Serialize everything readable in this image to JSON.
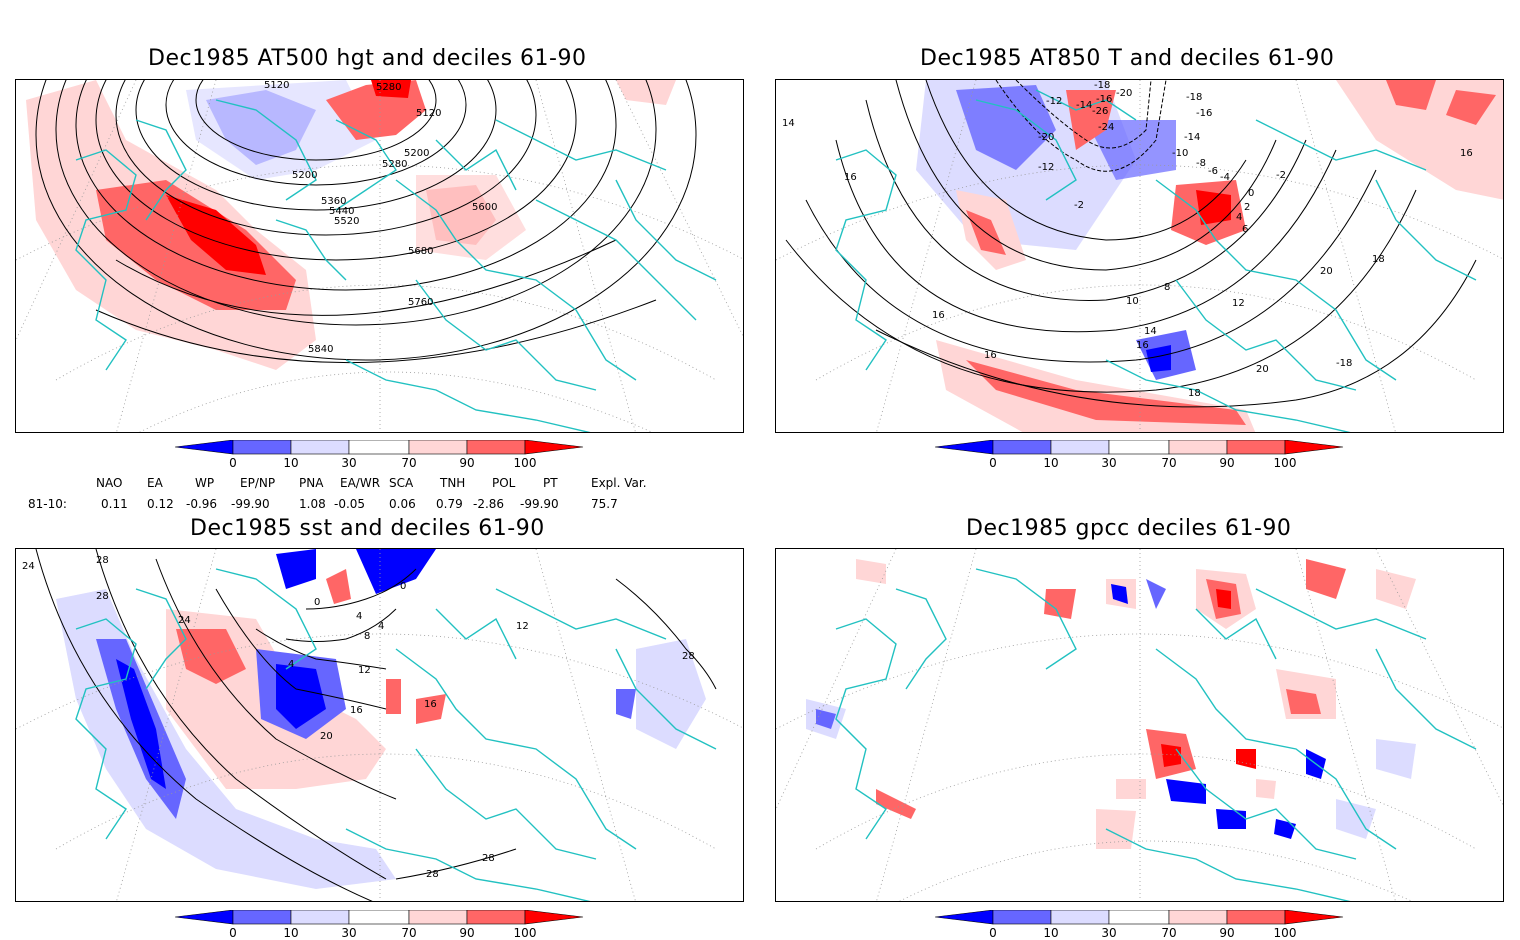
{
  "panels": [
    {
      "title": "Dec1985 AT500 hgt and deciles 61-90",
      "contour_labels": [
        "5120",
        "5280",
        "5120",
        "5200",
        "5280",
        "5200",
        "5360",
        "5440",
        "5520",
        "5600",
        "5680",
        "5760",
        "5840"
      ]
    },
    {
      "title": "Dec1985 AT850 T and deciles 61-90",
      "contour_labels": [
        "-18",
        "-20",
        "-16",
        "-14",
        "-12",
        "-20",
        "-26",
        "-24",
        "-18",
        "-16",
        "-14",
        "-10",
        "-8",
        "-6",
        "-4",
        "-2",
        "-12",
        "-2",
        "0",
        "2",
        "4",
        "6",
        "8",
        "10",
        "12",
        "14",
        "16",
        "16",
        "16",
        "16",
        "18",
        "18",
        "20",
        "20",
        "-18",
        "14",
        "16"
      ]
    },
    {
      "title": "Dec1985 sst and deciles 61-90",
      "contour_labels": [
        "24",
        "28",
        "28",
        "24",
        "0",
        "0",
        "4",
        "4",
        "8",
        "12",
        "16",
        "20",
        "16",
        "28",
        "28",
        "28",
        "4",
        "12"
      ]
    },
    {
      "title": "Dec1985 gpcc deciles 61-90",
      "contour_labels": []
    }
  ],
  "colorbar": {
    "tick_labels": [
      "0",
      "10",
      "30",
      "70",
      "90",
      "100"
    ],
    "colors": [
      "#0000ff",
      "#6666ff",
      "#dcdcff",
      "#ffffff",
      "#ffd6d6",
      "#ff6666",
      "#ff0000"
    ]
  },
  "indices": {
    "headers": [
      "NAO",
      "EA",
      "WP",
      "EP/NP",
      "PNA",
      "EA/WR",
      "SCA",
      "TNH",
      "POL",
      "PT",
      "Expl. Var."
    ],
    "row_label": "81-10:",
    "values": [
      "0.11",
      "0.12",
      "-0.96",
      "-99.90",
      "1.08",
      "-0.05",
      "0.06",
      "0.79",
      "-2.86",
      "-99.90",
      "75.7"
    ]
  },
  "map_colors": {
    "coast": "#22c1c1",
    "grid": "#9a9a9a",
    "contour": "#000000"
  }
}
